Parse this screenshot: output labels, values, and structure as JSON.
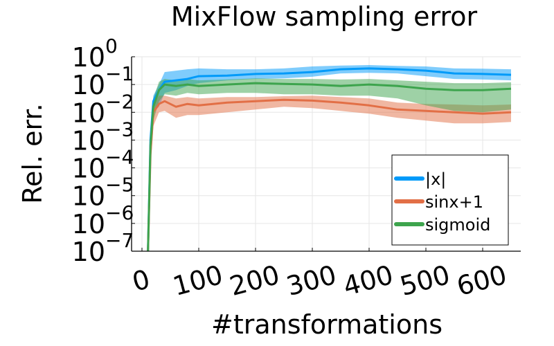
{
  "chart_data": {
    "type": "line",
    "title": "MixFlow sampling error",
    "xlabel": "#transformations",
    "ylabel": "Rel. err.",
    "xlim": [
      -10,
      660
    ],
    "ylim_log10": [
      -7,
      0
    ],
    "y_scale": "log",
    "x_ticks": [
      0,
      100,
      200,
      300,
      400,
      500,
      600
    ],
    "x_tick_labels": [
      "0",
      "100",
      "200",
      "300",
      "400",
      "500",
      "600"
    ],
    "y_ticks": [
      {
        "base": "10",
        "exp": "0",
        "value": 0
      },
      {
        "base": "10",
        "exp": "−1",
        "value": -1
      },
      {
        "base": "10",
        "exp": "−2",
        "value": -2
      },
      {
        "base": "10",
        "exp": "−3",
        "value": -3
      },
      {
        "base": "10",
        "exp": "−4",
        "value": -4
      },
      {
        "base": "10",
        "exp": "−5",
        "value": -5
      },
      {
        "base": "10",
        "exp": "−6",
        "value": -6
      },
      {
        "base": "10",
        "exp": "−7",
        "value": -7
      }
    ],
    "grid": true,
    "legend_position": "bottom-right",
    "series": [
      {
        "name": "|x|",
        "color": "#009af9",
        "x": [
          10,
          15,
          20,
          30,
          40,
          60,
          80,
          100,
          150,
          200,
          250,
          300,
          350,
          400,
          450,
          500,
          550,
          600,
          650
        ],
        "log10": [
          -7.5,
          -3.0,
          -1.6,
          -1.2,
          -0.9,
          -0.85,
          -0.8,
          -0.7,
          -0.68,
          -0.62,
          -0.6,
          -0.55,
          -0.45,
          -0.42,
          -0.45,
          -0.5,
          -0.6,
          -0.62,
          -0.65
        ],
        "lower": [
          -7.5,
          -3.5,
          -2.0,
          -1.8,
          -1.3,
          -1.2,
          -1.05,
          -0.95,
          -0.85,
          -0.8,
          -0.78,
          -0.72,
          -0.6,
          -0.58,
          -0.6,
          -0.7,
          -0.8,
          -0.82,
          -0.85
        ],
        "upper": [
          -7.5,
          -2.6,
          -1.4,
          -1.0,
          -0.55,
          -0.5,
          -0.45,
          -0.42,
          -0.45,
          -0.45,
          -0.42,
          -0.35,
          -0.32,
          -0.3,
          -0.33,
          -0.35,
          -0.42,
          -0.43,
          -0.45
        ]
      },
      {
        "name": "sinx+1",
        "color": "#e26f46",
        "x": [
          10,
          15,
          20,
          30,
          40,
          60,
          80,
          100,
          150,
          200,
          250,
          300,
          350,
          400,
          450,
          500,
          550,
          600,
          650
        ],
        "log10": [
          -7.5,
          -3.5,
          -2.0,
          -1.7,
          -1.6,
          -1.8,
          -1.7,
          -1.75,
          -1.65,
          -1.6,
          -1.55,
          -1.58,
          -1.65,
          -1.75,
          -1.9,
          -1.95,
          -2.0,
          -2.05,
          -2.0
        ],
        "lower": [
          -7.5,
          -4.0,
          -2.5,
          -2.0,
          -1.95,
          -2.2,
          -2.1,
          -2.1,
          -2.0,
          -1.9,
          -1.8,
          -1.85,
          -1.95,
          -2.05,
          -2.2,
          -2.3,
          -2.4,
          -2.4,
          -2.35
        ],
        "upper": [
          -7.5,
          -3.0,
          -1.7,
          -1.4,
          -1.4,
          -1.5,
          -1.45,
          -1.5,
          -1.45,
          -1.45,
          -1.42,
          -1.4,
          -1.45,
          -1.5,
          -1.65,
          -1.7,
          -1.72,
          -1.75,
          -1.72
        ]
      },
      {
        "name": "sigmoid",
        "color": "#3da44d",
        "x": [
          10,
          15,
          20,
          30,
          40,
          60,
          80,
          100,
          150,
          200,
          250,
          300,
          350,
          400,
          450,
          500,
          550,
          600,
          650
        ],
        "log10": [
          -7.5,
          -3.2,
          -1.8,
          -1.2,
          -1.0,
          -1.05,
          -1.0,
          -1.05,
          -1.0,
          -0.95,
          -0.98,
          -1.0,
          -1.05,
          -1.0,
          -1.05,
          -1.15,
          -1.2,
          -1.2,
          -1.15
        ],
        "lower": [
          -7.5,
          -3.8,
          -2.3,
          -1.6,
          -1.35,
          -1.4,
          -1.3,
          -1.35,
          -1.3,
          -1.3,
          -1.35,
          -1.35,
          -1.4,
          -1.4,
          -1.5,
          -1.75,
          -1.95,
          -2.0,
          -1.9
        ],
        "upper": [
          -7.5,
          -2.8,
          -1.5,
          -0.9,
          -0.8,
          -0.85,
          -0.8,
          -0.85,
          -0.82,
          -0.78,
          -0.8,
          -0.8,
          -0.82,
          -0.8,
          -0.85,
          -0.9,
          -0.95,
          -0.95,
          -0.92
        ]
      }
    ]
  }
}
